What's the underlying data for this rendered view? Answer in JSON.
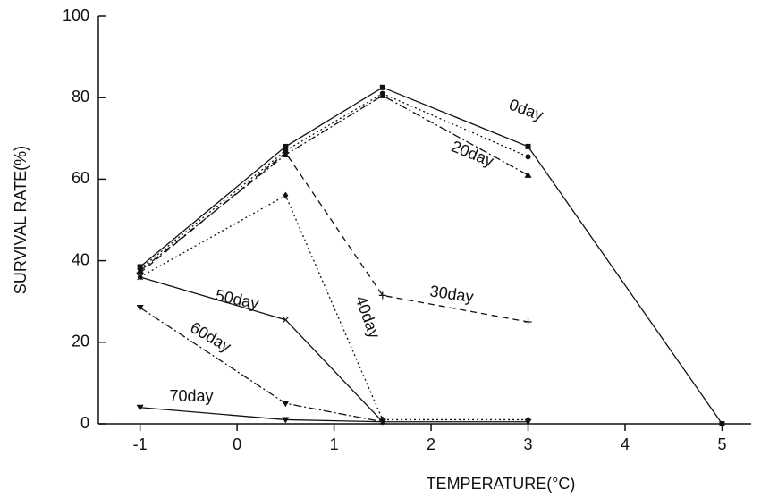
{
  "chart_data": {
    "type": "line",
    "xlabel": "TEMPERATURE(°C)",
    "ylabel": "SURVIVAL RATE(%)",
    "xlim": [
      -1.43,
      5.3
    ],
    "ylim": [
      0,
      100
    ],
    "xticks": [
      -1,
      0,
      1,
      2,
      3,
      4,
      5
    ],
    "yticks": [
      0,
      20,
      40,
      60,
      80,
      100
    ],
    "series": [
      {
        "name": "0day",
        "color": "#111111",
        "dash": "solid",
        "marker": "square",
        "x": [
          -1,
          0.5,
          1.5,
          3,
          5
        ],
        "values": [
          38.5,
          68,
          82.5,
          68,
          0
        ]
      },
      {
        "color": "#111111",
        "dash": "dotted",
        "marker": "circle",
        "x": [
          -1,
          0.5,
          1.5,
          3
        ],
        "values": [
          38,
          67,
          81,
          65.5
        ]
      },
      {
        "name": "20day",
        "color": "#111111",
        "dash": "dashdot",
        "marker": "triangle",
        "x": [
          -1,
          0.5,
          1.5,
          3
        ],
        "values": [
          37.5,
          66,
          80.5,
          61
        ]
      },
      {
        "name": "30day",
        "color": "#111111",
        "dash": "dashed",
        "marker": "plus",
        "x": [
          -1,
          0.5,
          1.5,
          3
        ],
        "values": [
          37,
          66.5,
          31.5,
          25
        ]
      },
      {
        "name": "40day",
        "color": "#111111",
        "dash": "dotted",
        "marker": "diamond",
        "x": [
          -1,
          0.5,
          1.5,
          3
        ],
        "values": [
          36,
          56,
          1,
          1
        ]
      },
      {
        "name": "50day",
        "color": "#111111",
        "dash": "solid",
        "marker": "cross",
        "x": [
          -1,
          0.5,
          1.5
        ],
        "values": [
          36,
          25.5,
          0.5
        ]
      },
      {
        "name": "60day",
        "color": "#111111",
        "dash": "dashdot",
        "marker": "down",
        "x": [
          -1,
          0.5,
          1.5
        ],
        "values": [
          28.5,
          5,
          0.5
        ]
      },
      {
        "name": "70day",
        "color": "#111111",
        "dash": "solid",
        "marker": "down",
        "x": [
          -1,
          0.5,
          1.5,
          3
        ],
        "values": [
          4,
          1,
          0.5,
          0.5
        ]
      }
    ]
  }
}
